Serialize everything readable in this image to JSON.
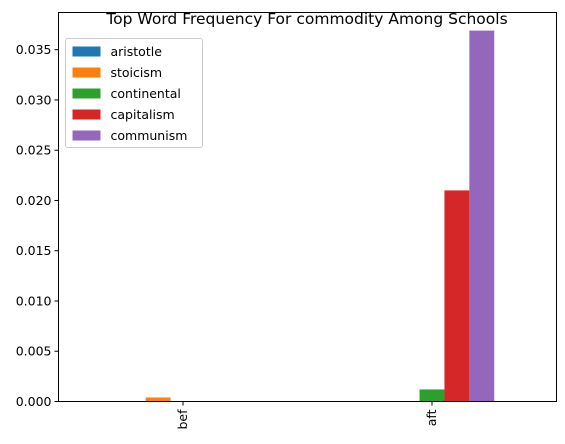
{
  "chart_data": {
    "type": "bar",
    "title": "Top Word Frequency For commodity Among Schools",
    "xlabel": "",
    "ylabel": "",
    "categories": [
      "bef",
      "aft"
    ],
    "series": [
      {
        "name": "aristotle",
        "color": "#1f77b4",
        "values": [
          0.0,
          0.0
        ]
      },
      {
        "name": "stoicism",
        "color": "#ff7f0e",
        "values": [
          0.0004,
          0.0
        ]
      },
      {
        "name": "continental",
        "color": "#2ca02c",
        "values": [
          0.0,
          0.0012
        ]
      },
      {
        "name": "capitalism",
        "color": "#d62728",
        "values": [
          0.0,
          0.021
        ]
      },
      {
        "name": "communism",
        "color": "#9467bd",
        "values": [
          0.0,
          0.0369
        ]
      }
    ],
    "ylim": [
      0,
      0.0387
    ],
    "yticks": [
      "0.000",
      "0.005",
      "0.010",
      "0.015",
      "0.020",
      "0.025",
      "0.030",
      "0.035"
    ],
    "legend_position": "top-left",
    "grid": false
  }
}
